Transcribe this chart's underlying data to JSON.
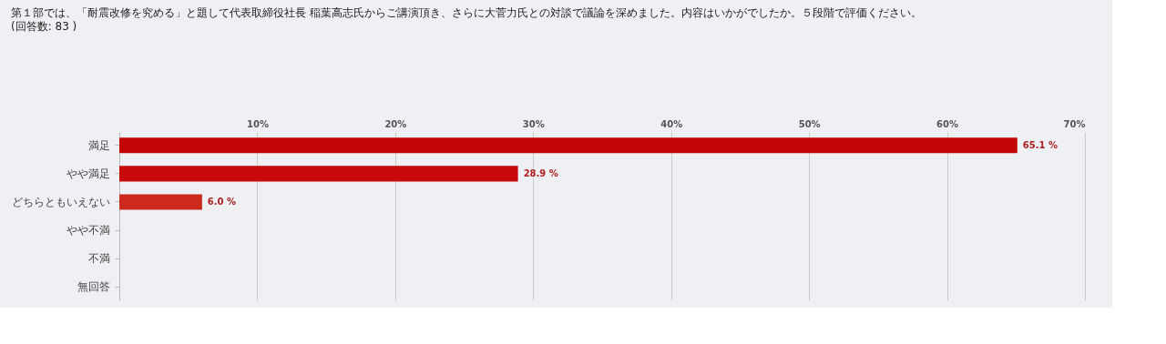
{
  "chart_data": {
    "type": "bar",
    "orientation": "horizontal",
    "title": "第１部では、「耐震改修を究める」と題して代表取締役社長 稲葉高志氏からご講演頂き、さらに大菅力氏との対談で議論を深めました。内容はいかがでしたか。５段階で評価ください。",
    "subtitle": "(回答数: 83 )",
    "categories": [
      "満足",
      "やや満足",
      "どちらともいえない",
      "やや不満",
      "不満",
      "無回答"
    ],
    "values": [
      65.1,
      28.9,
      6.0,
      0,
      0,
      0
    ],
    "colors": [
      "#c20606",
      "#c80a0a",
      "#cc2a1c",
      "#cc2a1c",
      "#cc2a1c",
      "#cc2a1c"
    ],
    "value_labels": [
      "65.1 %",
      "28.9 %",
      "6.0 %",
      null,
      null,
      null
    ],
    "xlim": [
      0,
      70
    ],
    "xticks": [
      {
        "value": 10,
        "label": "10%"
      },
      {
        "value": 20,
        "label": "20%"
      },
      {
        "value": 30,
        "label": "30%"
      },
      {
        "value": 40,
        "label": "40%"
      },
      {
        "value": 50,
        "label": "50%"
      },
      {
        "value": 60,
        "label": "60%"
      },
      {
        "value": 70,
        "label": "70%"
      }
    ],
    "grid": "x"
  }
}
